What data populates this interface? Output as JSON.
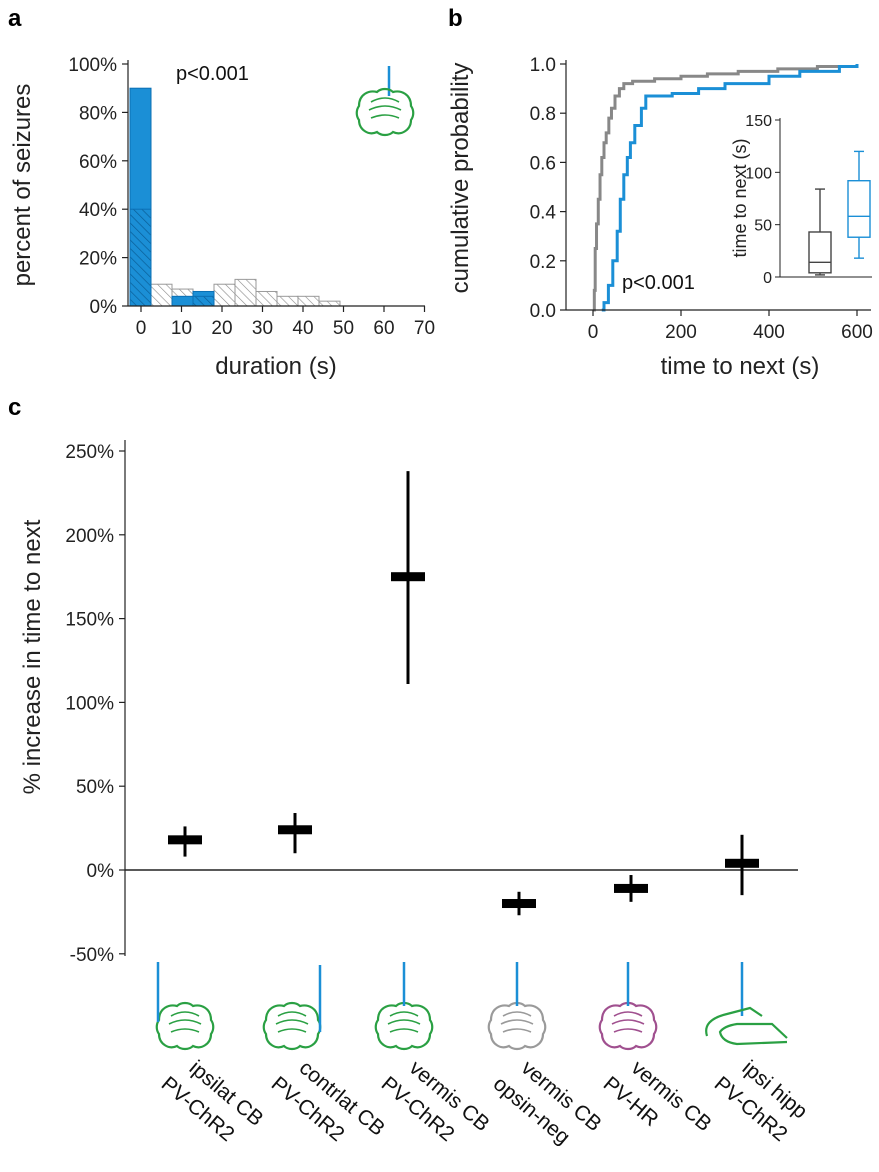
{
  "panels": {
    "a": "a",
    "b": "b",
    "c": "c"
  },
  "colors": {
    "blue": "#1b8fd6",
    "blue_dark": "#0b6fb3",
    "gray": "#888888",
    "green": "#2aa043",
    "purple": "#a0508f",
    "brain_gray": "#9a9a9a"
  },
  "chart_data": [
    {
      "id": "a",
      "type": "bar",
      "ylabel": "percent of seizures",
      "xlabel": "duration (s)",
      "annotation": "p<0.001",
      "ylim": [
        0,
        100
      ],
      "yticks": [
        "0%",
        "20%",
        "40%",
        "60%",
        "80%",
        "100%"
      ],
      "xticks": [
        "0",
        "10",
        "20",
        "30",
        "40",
        "50",
        "60",
        "70"
      ],
      "bin_width": 5,
      "series": [
        {
          "style": "solid-blue",
          "bins": [
            0,
            5,
            10,
            15
          ],
          "values": [
            90,
            0,
            4,
            6
          ]
        },
        {
          "style": "hatched",
          "bins": [
            0,
            5,
            10,
            15,
            20,
            25,
            30,
            35,
            40,
            45
          ],
          "values": [
            40,
            9,
            7,
            4,
            9,
            11,
            6,
            4,
            4,
            2
          ]
        }
      ]
    },
    {
      "id": "b",
      "type": "line",
      "ylabel": "cumulative probability",
      "xlabel": "time to next (s)",
      "annotation": "p<0.001",
      "xlim": [
        -60,
        630
      ],
      "ylim": [
        0,
        1
      ],
      "xticks": [
        "0",
        "200",
        "400",
        "600"
      ],
      "yticks": [
        "0.0",
        "0.2",
        "0.4",
        "0.6",
        "0.8",
        "1.0"
      ],
      "series": [
        {
          "color": "gray",
          "points": [
            [
              0,
              0
            ],
            [
              3,
              0.08
            ],
            [
              5,
              0.25
            ],
            [
              8,
              0.35
            ],
            [
              12,
              0.45
            ],
            [
              16,
              0.55
            ],
            [
              20,
              0.62
            ],
            [
              25,
              0.68
            ],
            [
              30,
              0.72
            ],
            [
              36,
              0.78
            ],
            [
              42,
              0.82
            ],
            [
              50,
              0.87
            ],
            [
              60,
              0.9
            ],
            [
              70,
              0.92
            ],
            [
              90,
              0.93
            ],
            [
              140,
              0.94
            ],
            [
              200,
              0.95
            ],
            [
              260,
              0.96
            ],
            [
              330,
              0.97
            ],
            [
              420,
              0.98
            ],
            [
              510,
              0.99
            ],
            [
              600,
              1.0
            ]
          ]
        },
        {
          "color": "blue",
          "points": [
            [
              20,
              0
            ],
            [
              25,
              0.03
            ],
            [
              35,
              0.1
            ],
            [
              45,
              0.2
            ],
            [
              55,
              0.32
            ],
            [
              62,
              0.45
            ],
            [
              70,
              0.55
            ],
            [
              78,
              0.62
            ],
            [
              85,
              0.68
            ],
            [
              95,
              0.75
            ],
            [
              110,
              0.82
            ],
            [
              120,
              0.87
            ],
            [
              180,
              0.88
            ],
            [
              240,
              0.9
            ],
            [
              300,
              0.92
            ],
            [
              400,
              0.95
            ],
            [
              470,
              0.97
            ],
            [
              560,
              0.99
            ],
            [
              600,
              1.0
            ]
          ]
        }
      ],
      "inset": {
        "type": "box",
        "ylabel": "time to next (s)",
        "ylim": [
          0,
          150
        ],
        "yticks": [
          "0",
          "50",
          "100",
          "150"
        ],
        "boxes": [
          {
            "color": "dark",
            "min": 2,
            "q1": 4,
            "median": 14,
            "q3": 43,
            "max": 84
          },
          {
            "color": "blue",
            "min": 18,
            "q1": 38,
            "median": 58,
            "q3": 92,
            "max": 120
          }
        ]
      }
    },
    {
      "id": "c",
      "type": "scatter",
      "ylabel": "% increase in time to next",
      "ylim": [
        -50,
        250
      ],
      "yticks": [
        "-50%",
        "0%",
        "50%",
        "100%",
        "150%",
        "200%",
        "250%"
      ],
      "categories": [
        {
          "label1": "ipsilat CB",
          "label2": "PV-ChR2",
          "brain": "cerebellum",
          "color": "green",
          "probe": "left"
        },
        {
          "label1": "contrlat CB",
          "label2": "PV-ChR2",
          "brain": "cerebellum",
          "color": "green",
          "probe": "right"
        },
        {
          "label1": "vermis CB",
          "label2": "PV-ChR2",
          "brain": "cerebellum",
          "color": "green",
          "probe": "center"
        },
        {
          "label1": "vermis CB",
          "label2": "opsin-neg",
          "brain": "cerebellum",
          "color": "brain_gray",
          "probe": "center"
        },
        {
          "label1": "vermis CB",
          "label2": "PV-HR",
          "brain": "cerebellum",
          "color": "purple",
          "probe": "center"
        },
        {
          "label1": "ipsi hipp",
          "label2": "PV-ChR2",
          "brain": "hippocampus",
          "color": "green",
          "probe": "center"
        }
      ],
      "values": [
        18,
        24,
        175,
        -20,
        -11,
        4
      ],
      "err_low": [
        8,
        10,
        111,
        -27,
        -19,
        -15
      ],
      "err_high": [
        26,
        34,
        238,
        -13,
        -3,
        21
      ]
    }
  ]
}
